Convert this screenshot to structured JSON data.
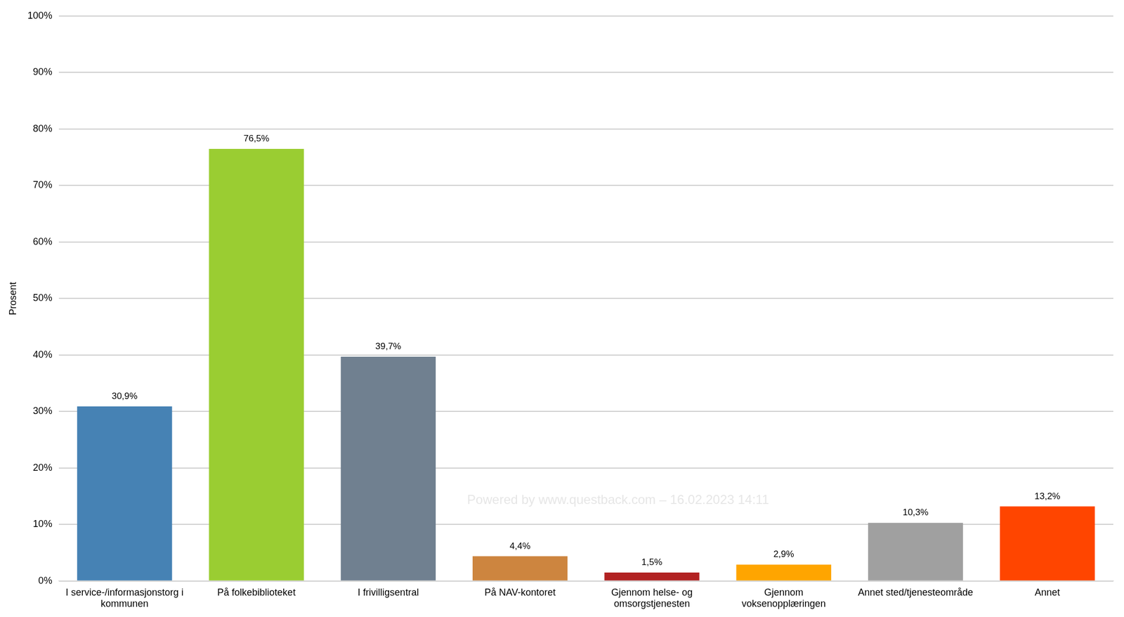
{
  "chart_data": {
    "type": "bar",
    "y_label": "Prosent",
    "categories": [
      [
        "I service-/informasjonstorg i",
        "kommunen"
      ],
      "På folkebiblioteket",
      "I frivilligsentral",
      "På NAV-kontoret",
      [
        "Gjennom helse- og",
        "omsorgstjenesten"
      ],
      [
        "Gjennom",
        "voksenopplæringen"
      ],
      "Annet sted/tjenesteområde",
      "Annet"
    ],
    "values": [
      30.9,
      76.5,
      39.7,
      4.4,
      1.5,
      2.9,
      10.3,
      13.2
    ],
    "value_labels": [
      "30,9%",
      "76,5%",
      "39,7%",
      "4,4%",
      "1,5%",
      "2,9%",
      "10,3%",
      "13,2%"
    ],
    "colors": [
      "#4682b4",
      "#9acd32",
      "#708090",
      "#cd853f",
      "#b22222",
      "#ffa500",
      "#a0a0a0",
      "#ff4500"
    ],
    "ylim": [
      0,
      100
    ],
    "yticks": [
      {
        "value": 0,
        "label": "0%"
      },
      {
        "value": 10,
        "label": "10%"
      },
      {
        "value": 20,
        "label": "20%"
      },
      {
        "value": 30,
        "label": "30%"
      },
      {
        "value": 40,
        "label": "40%"
      },
      {
        "value": 50,
        "label": "50%"
      },
      {
        "value": 60,
        "label": "60%"
      },
      {
        "value": 70,
        "label": "70%"
      },
      {
        "value": 80,
        "label": "80%"
      },
      {
        "value": 90,
        "label": "90%"
      },
      {
        "value": 100,
        "label": "100%"
      }
    ],
    "grid": true,
    "data_labels": true,
    "watermark": "Powered by www.questback.com – 16.02.2023 14:11"
  }
}
